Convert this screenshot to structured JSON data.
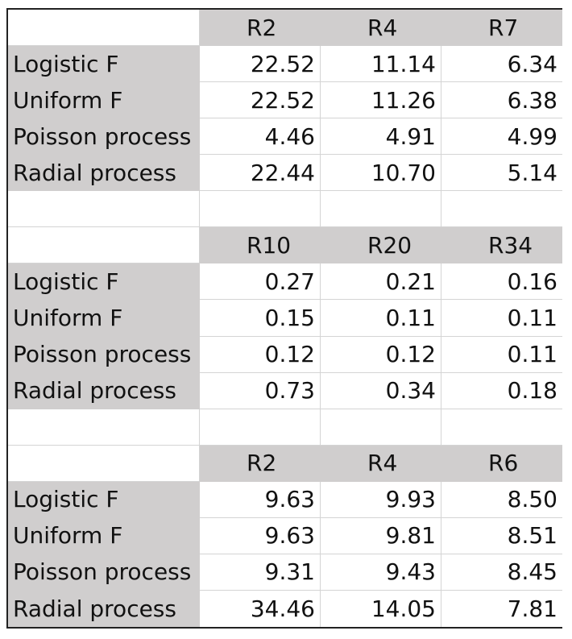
{
  "blocks": [
    {
      "headers": [
        "R2",
        "R4",
        "R7"
      ],
      "rows": [
        {
          "label": "Logistic F",
          "values": [
            "22.52",
            "11.14",
            "6.34"
          ]
        },
        {
          "label": "Uniform F",
          "values": [
            "22.52",
            "11.26",
            "6.38"
          ]
        },
        {
          "label": "Poisson process",
          "values": [
            "4.46",
            "4.91",
            "4.99"
          ]
        },
        {
          "label": "Radial process",
          "values": [
            "22.44",
            "10.70",
            "5.14"
          ]
        }
      ]
    },
    {
      "headers": [
        "R10",
        "R20",
        "R34"
      ],
      "rows": [
        {
          "label": "Logistic F",
          "values": [
            "0.27",
            "0.21",
            "0.16"
          ]
        },
        {
          "label": "Uniform F",
          "values": [
            "0.15",
            "0.11",
            "0.11"
          ]
        },
        {
          "label": "Poisson process",
          "values": [
            "0.12",
            "0.12",
            "0.11"
          ]
        },
        {
          "label": "Radial process",
          "values": [
            "0.73",
            "0.34",
            "0.18"
          ]
        }
      ]
    },
    {
      "headers": [
        "R2",
        "R4",
        "R6"
      ],
      "rows": [
        {
          "label": "Logistic F",
          "values": [
            "9.63",
            "9.93",
            "8.50"
          ]
        },
        {
          "label": "Uniform F",
          "values": [
            "9.63",
            "9.81",
            "8.51"
          ]
        },
        {
          "label": "Poisson process",
          "values": [
            "9.31",
            "9.43",
            "8.45"
          ]
        },
        {
          "label": "Radial process",
          "values": [
            "34.46",
            "14.05",
            "7.81"
          ]
        }
      ]
    }
  ]
}
